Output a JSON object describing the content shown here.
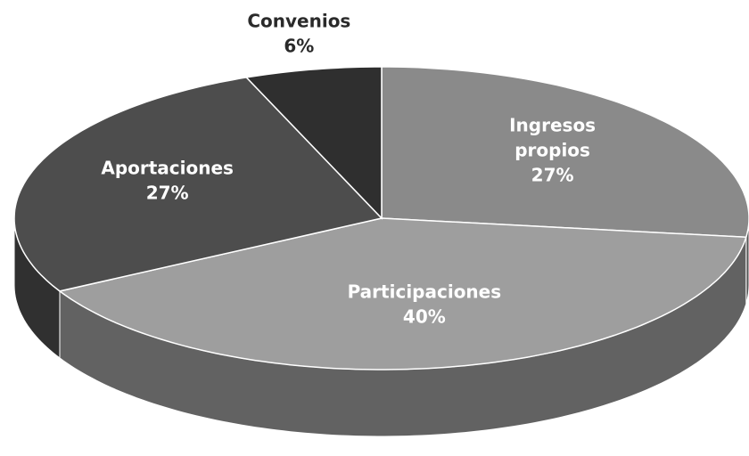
{
  "chart_data": {
    "type": "pie",
    "categories": [
      "Ingresos propios",
      "Participaciones",
      "Aportaciones",
      "Convenios"
    ],
    "values": [
      27,
      40,
      27,
      6
    ],
    "value_labels": [
      "27%",
      "40%",
      "27%",
      "6%"
    ],
    "colors": [
      "#8a8a8a",
      "#9e9e9e",
      "#4d4d4d",
      "#2f2f2f"
    ]
  }
}
